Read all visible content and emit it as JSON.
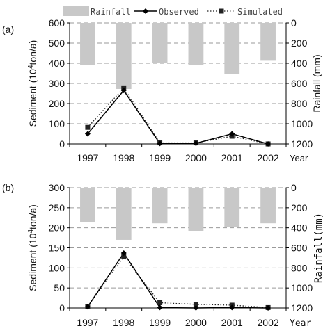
{
  "legend": {
    "items": [
      {
        "label": "Rainfall",
        "kind": "bar"
      },
      {
        "label": "Observed",
        "kind": "solid-diamond"
      },
      {
        "label": "Simulated",
        "kind": "dotted-square"
      }
    ]
  },
  "colors": {
    "rainfall": "#c8c8c8",
    "observed": "#000000",
    "simulated": "#222222",
    "grid": "#9a9a9a"
  },
  "chart_data": [
    {
      "panel": "(a)",
      "type": "bar+line",
      "categories": [
        "1997",
        "1998",
        "1999",
        "2000",
        "2001",
        "2002"
      ],
      "x_unit_label": "Year",
      "ylabel_left": {
        "main": "Sediment (10",
        "sup": "4",
        "tail": "ton/a)"
      },
      "ylabel_right": "Rainfall (mm)",
      "left_ylim": [
        0,
        600
      ],
      "left_ticks": [
        "0",
        "100",
        "200",
        "300",
        "400",
        "500",
        "600"
      ],
      "right_ylim": [
        0,
        1200
      ],
      "right_ticks": [
        "0",
        "200",
        "400",
        "600",
        "800",
        "1000",
        "1200"
      ],
      "right_inverted": true,
      "grid": "horizontal-dashed",
      "series": [
        {
          "name": "Rainfall",
          "axis": "right",
          "style": "bar",
          "values": [
            415,
            655,
            395,
            420,
            505,
            375
          ]
        },
        {
          "name": "Observed",
          "axis": "left",
          "style": "solid-diamond",
          "values": [
            50,
            265,
            2,
            3,
            50,
            0
          ]
        },
        {
          "name": "Simulated",
          "axis": "left",
          "style": "dotted-square",
          "values": [
            82,
            278,
            5,
            5,
            38,
            0
          ]
        }
      ]
    },
    {
      "panel": "(b)",
      "type": "bar+line",
      "categories": [
        "1997",
        "1998",
        "1999",
        "2000",
        "2001",
        "2002"
      ],
      "x_unit_label": "Year",
      "ylabel_left": {
        "main": "Sediment (10",
        "sup": "4",
        "tail": "ton/a)"
      },
      "ylabel_right": "Rainfall(mm)",
      "left_ylim": [
        0,
        300
      ],
      "left_ticks": [
        "0",
        "50",
        "100",
        "150",
        "200",
        "250",
        "300"
      ],
      "right_ylim": [
        0,
        1200
      ],
      "right_ticks": [
        "0",
        "200",
        "400",
        "600",
        "800",
        "1000",
        "1200"
      ],
      "right_inverted": true,
      "grid": "horizontal-dashed",
      "series": [
        {
          "name": "Rainfall",
          "axis": "right",
          "style": "bar",
          "values": [
            340,
            520,
            355,
            430,
            395,
            355
          ]
        },
        {
          "name": "Observed",
          "axis": "left",
          "style": "solid-diamond",
          "values": [
            3,
            137,
            1,
            0,
            1,
            0
          ]
        },
        {
          "name": "Simulated",
          "axis": "left",
          "style": "dotted-square",
          "values": [
            3,
            128,
            13,
            9,
            7,
            1
          ]
        }
      ]
    }
  ]
}
